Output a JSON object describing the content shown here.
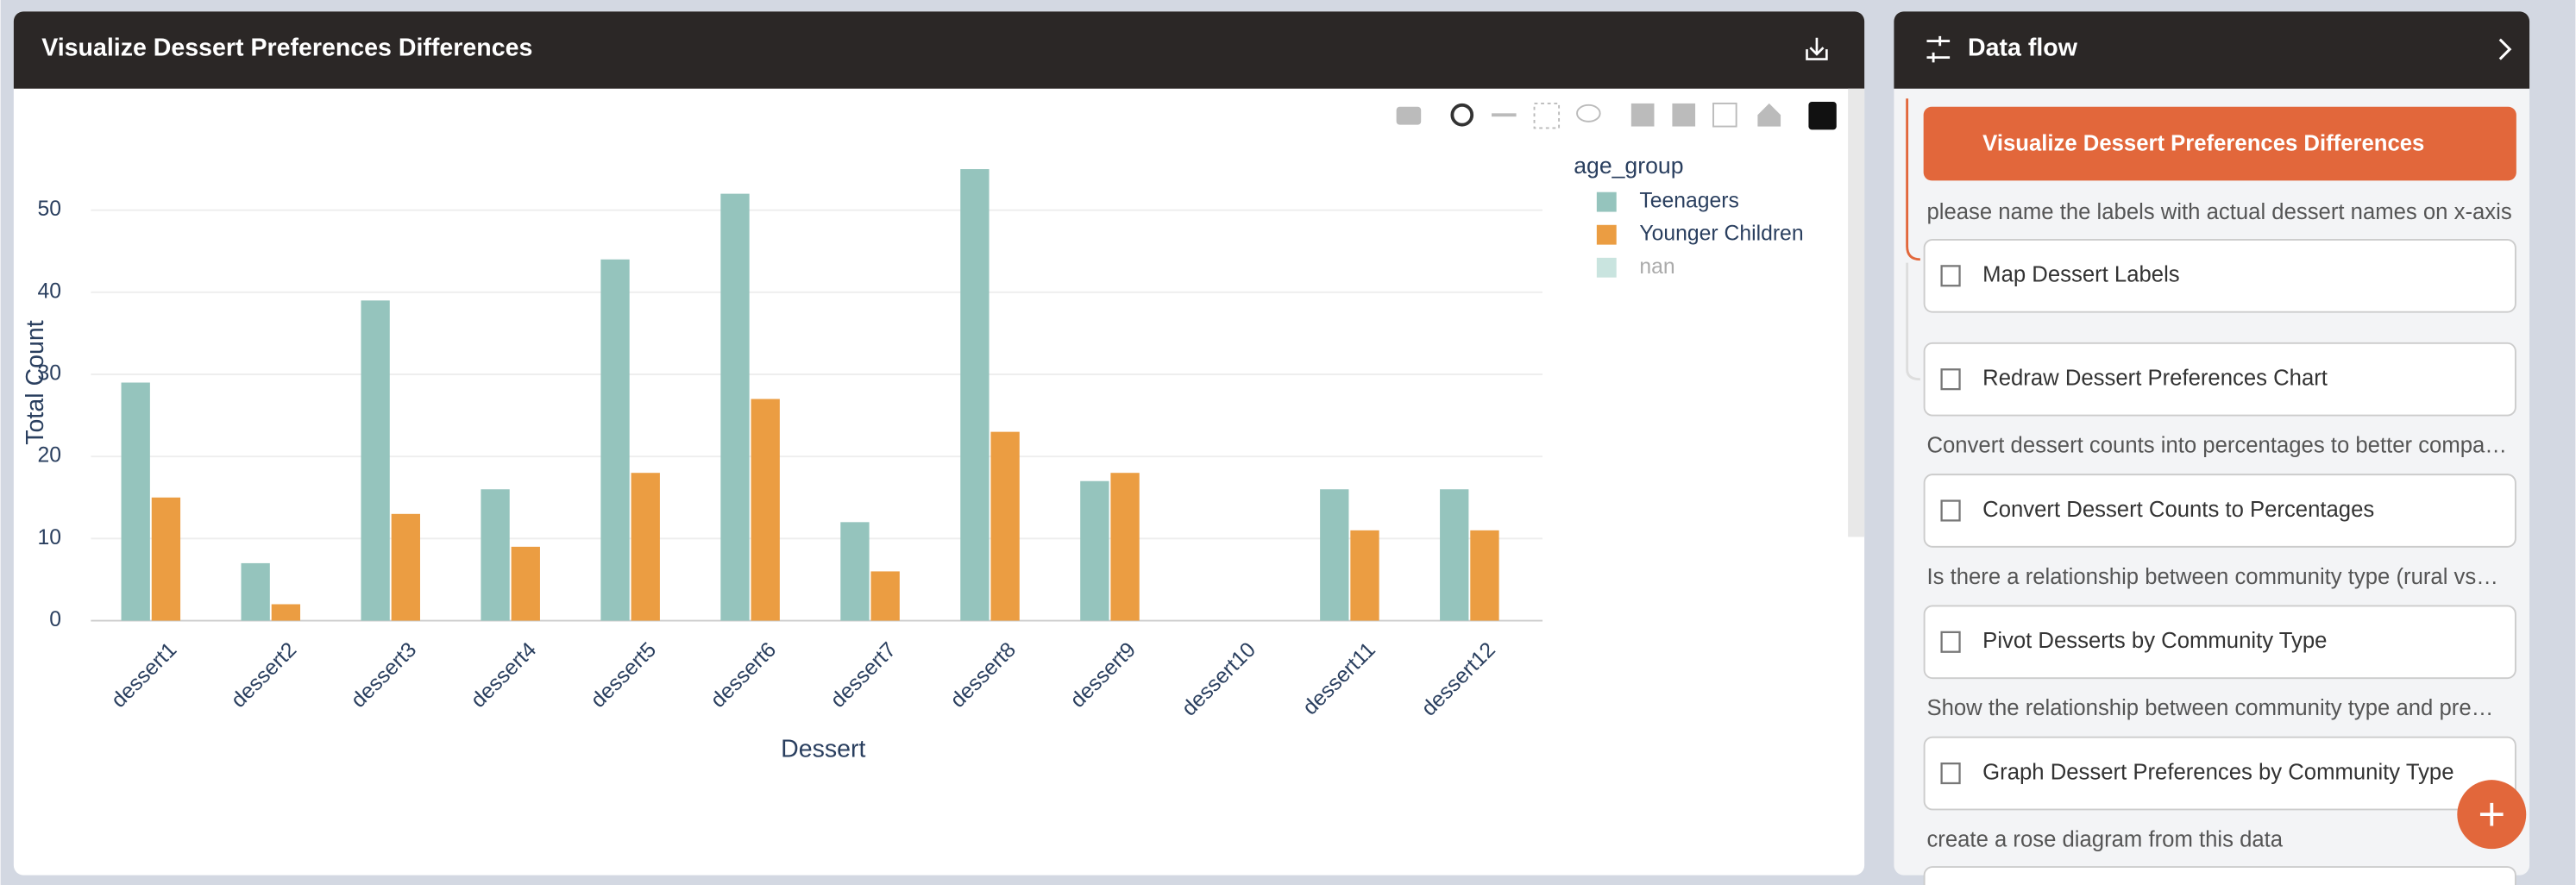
{
  "panel": {
    "title": "Visualize Dessert Preferences Differences"
  },
  "chart_data": {
    "type": "bar",
    "xlabel": "Dessert",
    "ylabel": "Total Count",
    "legend_title": "age_group",
    "legend": "right",
    "categories": [
      "dessert1",
      "dessert2",
      "dessert3",
      "dessert4",
      "dessert5",
      "dessert6",
      "dessert7",
      "dessert8",
      "dessert9",
      "dessert10",
      "dessert11",
      "dessert12"
    ],
    "series": [
      {
        "name": "Teenagers",
        "color": "#95c4bd",
        "values": [
          29,
          7,
          39,
          16,
          44,
          52,
          12,
          55,
          17,
          null,
          16,
          16
        ]
      },
      {
        "name": "Younger Children",
        "color": "#eb9d42",
        "values": [
          15,
          2,
          13,
          9,
          18,
          27,
          6,
          23,
          18,
          null,
          11,
          11
        ]
      },
      {
        "name": "nan",
        "color": "#c9e4df",
        "values": [
          null,
          null,
          null,
          null,
          null,
          null,
          null,
          null,
          null,
          null,
          null,
          null
        ]
      }
    ],
    "ylim": [
      0,
      58
    ],
    "yticks": [
      0,
      10,
      20,
      30,
      40,
      50
    ],
    "grid": true
  },
  "sidebar": {
    "title": "Data flow",
    "active": "Visualize Dessert Preferences Differences",
    "prompts": [
      "please name the labels with actual dessert names on x-axis",
      "Convert dessert counts into percentages to better compa…",
      "Is there a relationship between community type (rural vs…",
      "Show the relationship between community type and pre…",
      "create a rose diagram from this data"
    ],
    "steps": [
      "Map Dessert Labels",
      "Redraw Dessert Preferences Chart",
      "Convert Dessert Counts to Percentages",
      "Pivot Desserts by Community Type",
      "Graph Dessert Preferences by Community Type"
    ]
  }
}
